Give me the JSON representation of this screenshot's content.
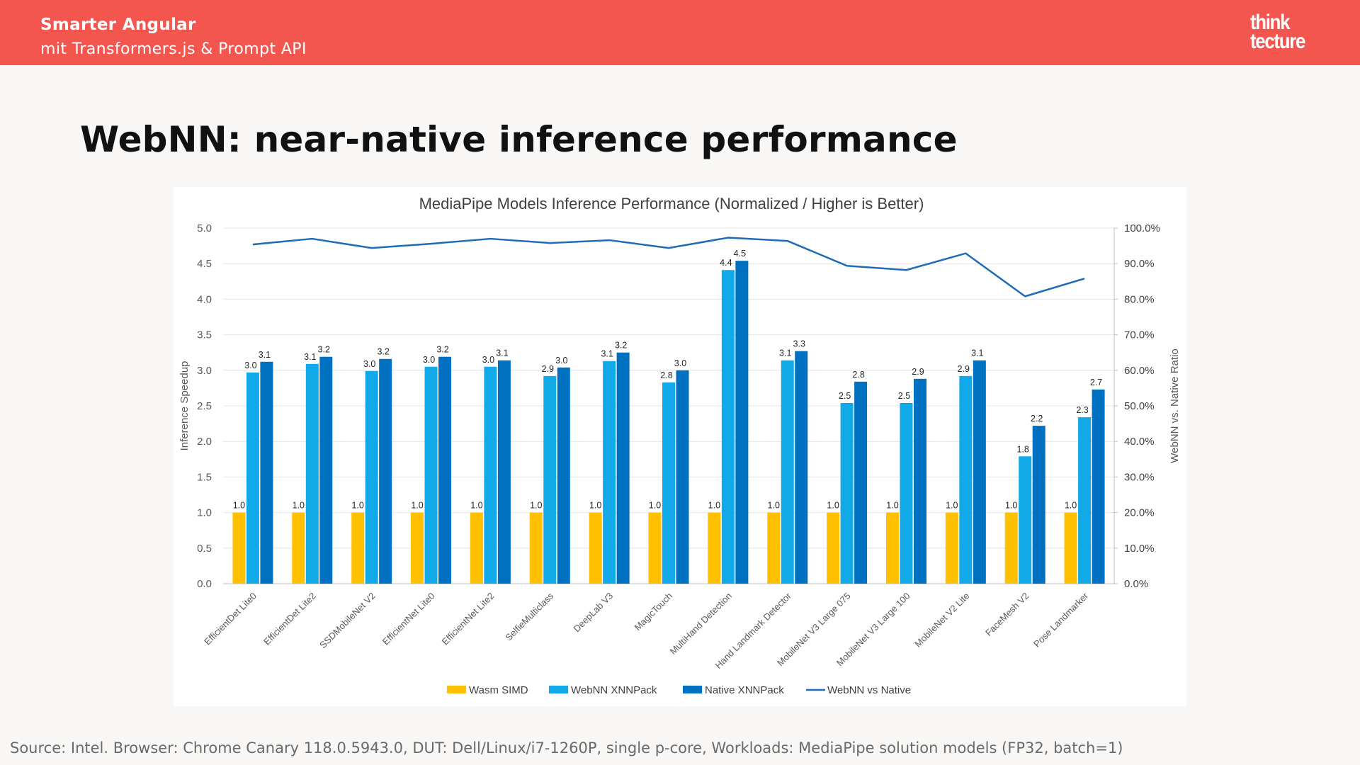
{
  "header": {
    "title": "Smarter Angular",
    "subtitle": "mit Transformers.js & Prompt API",
    "logo": [
      "think",
      "tecture"
    ]
  },
  "slide": {
    "heading": "WebNN: near-native inference performance",
    "source": "Source: Intel. Browser: Chrome Canary 118.0.5943.0, DUT: Dell/Linux/i7-1260P, single p-core, Workloads: MediaPipe solution models (FP32, batch=1)"
  },
  "colors": {
    "brand": "#f2564e",
    "wasm": "#ffc000",
    "webnn": "#12a9e8",
    "native": "#0070c0",
    "ratio_line": "#1f6bb5"
  },
  "chart_data": {
    "type": "bar",
    "title": "MediaPipe Models Inference Performance (Normalized / Higher is Better)",
    "xlabel": "",
    "ylabel": "Inference Speedup",
    "y2label": "WebNN vs. Native Ratio",
    "ylim": [
      0,
      5
    ],
    "yticks": [
      "0.0",
      "0.5",
      "1.0",
      "1.5",
      "2.0",
      "2.5",
      "3.0",
      "3.5",
      "4.0",
      "4.5",
      "5.0"
    ],
    "y2lim": [
      0,
      100
    ],
    "y2ticks": [
      "0.0%",
      "10.0%",
      "20.0%",
      "30.0%",
      "40.0%",
      "50.0%",
      "60.0%",
      "70.0%",
      "80.0%",
      "90.0%",
      "100.0%"
    ],
    "legend_position": "bottom",
    "categories": [
      "EfficientDet Lite0",
      "EfficientDet Lite2",
      "SSDMobileNet V2",
      "EfficientNet Lite0",
      "EfficientNet Lite2",
      "SelfieMulticlass",
      "DeepLab V3",
      "MagicTouch",
      "MultiHand Detection",
      "Hand Landmark Detector",
      "MobileNet V3 Large 075",
      "MobileNet V3 Large 100",
      "MobileNet V2 Lite",
      "FaceMesh V2",
      "Pose Landmarker"
    ],
    "series": [
      {
        "name": "Wasm SIMD",
        "kind": "bar",
        "values": [
          1.0,
          1.0,
          1.0,
          1.0,
          1.0,
          1.0,
          1.0,
          1.0,
          1.0,
          1.0,
          1.0,
          1.0,
          1.0,
          1.0,
          1.0
        ],
        "labels": [
          "1.0",
          "1.0",
          "1.0",
          "1.0",
          "1.0",
          "1.0",
          "1.0",
          "1.0",
          "1.0",
          "1.0",
          "1.0",
          "1.0",
          "1.0",
          "1.0",
          "1.0"
        ]
      },
      {
        "name": "WebNN XNNPack",
        "kind": "bar",
        "values": [
          2.97,
          3.09,
          2.99,
          3.05,
          3.05,
          2.92,
          3.13,
          2.83,
          4.41,
          3.14,
          2.54,
          2.54,
          2.92,
          1.79,
          2.34
        ],
        "labels": [
          "3.0",
          "3.1",
          "3.0",
          "3.0",
          "3.0",
          "2.9",
          "3.1",
          "2.8",
          "4.4",
          "3.1",
          "2.5",
          "2.5",
          "2.9",
          "1.8",
          "2.3"
        ]
      },
      {
        "name": "Native XNNPack",
        "kind": "bar",
        "values": [
          3.12,
          3.19,
          3.16,
          3.19,
          3.14,
          3.04,
          3.25,
          3.0,
          4.54,
          3.27,
          2.84,
          2.88,
          3.14,
          2.22,
          2.73
        ],
        "labels": [
          "3.1",
          "3.2",
          "3.2",
          "3.2",
          "3.1",
          "3.0",
          "3.2",
          "3.0",
          "4.5",
          "3.3",
          "2.8",
          "2.9",
          "3.1",
          "2.2",
          "2.7"
        ]
      },
      {
        "name": "WebNN vs Native",
        "kind": "line",
        "axis": "secondary",
        "values": [
          95.4,
          97.0,
          94.4,
          95.6,
          97.0,
          95.8,
          96.6,
          94.4,
          97.3,
          96.4,
          89.4,
          88.2,
          92.9,
          80.8,
          85.8
        ]
      }
    ]
  }
}
